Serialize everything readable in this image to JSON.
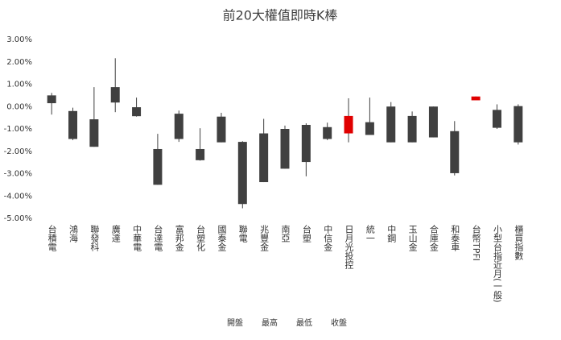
{
  "chart_data": {
    "type": "candlestick",
    "title": "前20大權值即時K棒",
    "categories": [
      "台積電",
      "鴻海",
      "聯發科",
      "廣達",
      "中華電",
      "台達電",
      "富邦金",
      "台塑化",
      "國泰金",
      "聯電",
      "兆豐金",
      "南亞",
      "台塑",
      "中信金",
      "日月光投控",
      "統一",
      "中鋼",
      "玉山金",
      "合庫金",
      "和泰車",
      "台幣TPFI",
      "小型台指近月(一般)",
      "櫃買指數"
    ],
    "series": [
      {
        "name": "開盤",
        "values": [
          0.5,
          -0.2,
          -0.57,
          0.87,
          -0.03,
          -1.9,
          -0.32,
          -1.9,
          -0.45,
          -1.58,
          -1.2,
          -1.0,
          -0.82,
          -0.92,
          -1.2,
          -0.7,
          0,
          -0.42,
          0,
          -1.1,
          0.28,
          -0.15,
          0.02
        ]
      },
      {
        "name": "最高",
        "values": [
          0.61,
          -0.05,
          0.87,
          2.16,
          0.4,
          -1.22,
          -0.18,
          -0.97,
          -0.28,
          -1.55,
          -0.55,
          -0.85,
          -0.75,
          -0.72,
          0.37,
          0.4,
          0.2,
          -0.22,
          0,
          -0.65,
          0.45,
          0.1,
          0.1
        ]
      },
      {
        "name": "最低",
        "values": [
          -0.36,
          -1.5,
          -1.8,
          -0.25,
          -0.45,
          -3.5,
          -1.58,
          -2.42,
          -1.6,
          -4.55,
          -3.38,
          -2.78,
          -3.12,
          -1.5,
          -1.6,
          -1.27,
          -1.6,
          -1.6,
          -1.38,
          -3.08,
          0.28,
          -1.0,
          -1.7
        ]
      },
      {
        "name": "收盤",
        "values": [
          0.15,
          -1.45,
          -1.8,
          0.18,
          -0.43,
          -3.5,
          -1.45,
          -2.4,
          -1.6,
          -4.36,
          -3.38,
          -2.78,
          -2.48,
          -1.45,
          -0.42,
          -1.27,
          -1.6,
          -1.6,
          -1.38,
          -2.98,
          0.45,
          -0.95,
          -1.6
        ]
      }
    ],
    "up_color": "#e00000",
    "down_color": "#404040",
    "ylim": [
      -5,
      3
    ],
    "yticks": [
      {
        "value": -5,
        "label": "-5.00%"
      },
      {
        "value": -4,
        "label": "-4.00%"
      },
      {
        "value": -3,
        "label": "-3.00%"
      },
      {
        "value": -2,
        "label": "-2.00%"
      },
      {
        "value": -1,
        "label": "-1.00%"
      },
      {
        "value": 0,
        "label": "0.00%"
      },
      {
        "value": 1,
        "label": "1.00%"
      },
      {
        "value": 2,
        "label": "2.00%"
      },
      {
        "value": 3,
        "label": "3.00%"
      }
    ],
    "grid": false
  }
}
